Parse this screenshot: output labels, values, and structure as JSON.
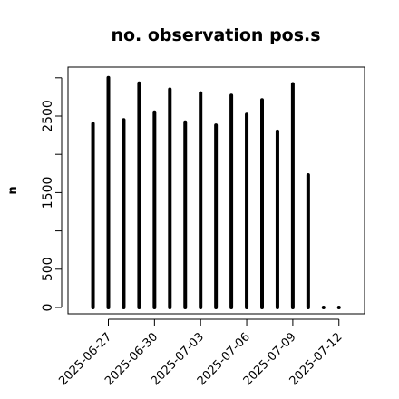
{
  "chart_data": {
    "type": "bar",
    "title": "no. observation pos.s",
    "xlabel": "",
    "ylabel": "n",
    "ylim": [
      0,
      3050
    ],
    "yticks": [
      0,
      500,
      1500,
      2500
    ],
    "x_tick_labels": [
      {
        "label": "2025-06-27",
        "color": "#000000",
        "date": "2025-06-27"
      },
      {
        "label": "2025-06-30",
        "color": "#000000",
        "date": "2025-06-30"
      },
      {
        "label": "2025-07-03",
        "color": "#228B22",
        "date": "2025-07-03"
      },
      {
        "label": "2025-07-06",
        "color": "#000000",
        "date": "2025-07-06"
      },
      {
        "label": "2025-07-09",
        "color": "#000000",
        "date": "2025-07-09"
      },
      {
        "label": "2025-07-12",
        "color": "#000000",
        "date": "2025-07-12"
      }
    ],
    "x": [
      "2025-06-26",
      "2025-06-27",
      "2025-06-28",
      "2025-06-29",
      "2025-06-30",
      "2025-07-01",
      "2025-07-02",
      "2025-07-03",
      "2025-07-04",
      "2025-07-05",
      "2025-07-06",
      "2025-07-07",
      "2025-07-08",
      "2025-07-09",
      "2025-07-10",
      "2025-07-11",
      "2025-07-12"
    ],
    "values": [
      2400,
      3000,
      2450,
      2930,
      2550,
      2850,
      2420,
      2800,
      2380,
      2770,
      2520,
      2710,
      2300,
      2920,
      1730,
      0,
      0
    ],
    "bar_color": "#000000",
    "grid": false
  }
}
